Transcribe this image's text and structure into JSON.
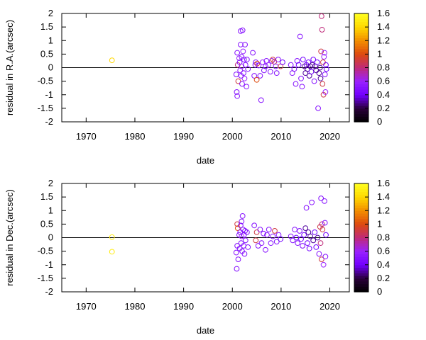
{
  "chart_data": [
    {
      "type": "scatter",
      "title": "",
      "xlabel": "date",
      "ylabel": "residual in R.A.(arcsec)",
      "xlim": [
        1965,
        2024
      ],
      "ylim": [
        -2,
        2
      ],
      "xticks": [
        "1970",
        "1980",
        "1990",
        "2000",
        "2010",
        "2020"
      ],
      "yticks": [
        "-2",
        "-1.5",
        "-1",
        "-0.5",
        "0",
        "0.5",
        "1",
        "1.5",
        "2"
      ],
      "zero_line": true,
      "colorbar": {
        "range": [
          0,
          1.6
        ],
        "ticks": [
          "0",
          "0.2",
          "0.4",
          "0.6",
          "0.8",
          "1",
          "1.2",
          "1.4",
          "1.6"
        ],
        "stops": [
          "#000000",
          "#2a003a",
          "#7200ff",
          "#9a22ff",
          "#bf2a7a",
          "#dd4a0e",
          "#f28e00",
          "#ffd800",
          "#ffff20"
        ]
      },
      "series": [
        {
          "x": [
            1975.3,
            2000.8,
            2000.9,
            2001.0,
            2001.0,
            2001.1,
            2001.2,
            2001.4,
            2001.5,
            2001.6,
            2001.7,
            2001.7,
            2001.8,
            2001.9,
            2001.9,
            2002.0,
            2002.1,
            2002.2,
            2002.3,
            2002.4,
            2002.5,
            2002.6,
            2002.7,
            2002.9,
            2003.0,
            2003.2,
            2004.2,
            2004.5,
            2004.7,
            2004.8,
            2005.0,
            2005.1,
            2005.4,
            2005.7,
            2005.9,
            2006.2,
            2006.5,
            2006.8,
            2007.0,
            2007.4,
            2007.8,
            2008.1,
            2008.3,
            2008.6,
            2008.9,
            2009.1,
            2009.4,
            2009.9,
            2010.3,
            2012.0,
            2012.3,
            2012.7,
            2013.0,
            2013.3,
            2013.6,
            2013.9,
            2014.1,
            2014.3,
            2014.5,
            2014.8,
            2015.0,
            2015.2,
            2015.4,
            2015.6,
            2015.8,
            2016.0,
            2016.2,
            2016.4,
            2016.6,
            2016.8,
            2017.0,
            2017.2,
            2017.4,
            2017.6,
            2017.8,
            2018.0,
            2018.1,
            2018.2,
            2018.3,
            2018.4,
            2018.5,
            2018.6,
            2018.7,
            2018.8,
            2018.9,
            2019.0,
            2019.1,
            2019.2,
            2019.3
          ],
          "y": [
            0.27,
            -0.25,
            -0.9,
            -1.05,
            0.55,
            0.1,
            -0.5,
            0.35,
            0.2,
            -0.1,
            0.85,
            1.35,
            -0.3,
            0.05,
            0.4,
            -0.6,
            1.38,
            0.6,
            -0.2,
            0.3,
            -0.4,
            0.85,
            0.1,
            -0.7,
            0.3,
            -0.05,
            0.55,
            -0.3,
            0.1,
            0.2,
            -0.45,
            0.15,
            0.08,
            -0.3,
            -1.2,
            0.2,
            -0.1,
            0.05,
            0.25,
            0.1,
            -0.15,
            0.25,
            0.3,
            0.22,
            0.05,
            -0.2,
            0.3,
            0.05,
            0.2,
            0.1,
            -0.2,
            -0.05,
            -0.6,
            0.25,
            0.1,
            1.15,
            -0.4,
            -0.7,
            0.3,
            0.05,
            -0.2,
            0.1,
            -0.05,
            0.2,
            -0.3,
            0.05,
            -0.15,
            0.1,
            0.3,
            -0.5,
            0.05,
            -0.1,
            0.2,
            -1.5,
            -0.2,
            0.0,
            -0.4,
            0.6,
            1.9,
            1.4,
            -0.6,
            0.2,
            -1.0,
            0.4,
            0.55,
            -0.25,
            -0.9,
            0.1,
            -0.05
          ],
          "c": [
            1.4,
            0.5,
            0.5,
            0.5,
            0.5,
            0.8,
            0.9,
            0.6,
            0.5,
            0.6,
            0.5,
            0.5,
            0.5,
            0.6,
            0.5,
            0.5,
            0.5,
            0.6,
            0.5,
            0.5,
            0.6,
            0.5,
            0.5,
            0.5,
            0.5,
            0.5,
            0.5,
            0.5,
            0.5,
            0.5,
            1.0,
            1.0,
            0.5,
            0.5,
            0.5,
            0.6,
            0.5,
            0.4,
            0.5,
            0.6,
            0.5,
            0.6,
            0.9,
            0.9,
            0.5,
            0.5,
            0.5,
            0.9,
            0.4,
            0.5,
            0.5,
            0.5,
            0.5,
            0.5,
            0.4,
            0.5,
            0.5,
            0.5,
            0.4,
            0.3,
            0.3,
            0.4,
            0.3,
            0.4,
            0.3,
            0.3,
            0.4,
            0.3,
            0.4,
            0.5,
            0.3,
            0.3,
            0.4,
            0.5,
            0.3,
            0.3,
            0.3,
            0.9,
            0.8,
            0.8,
            0.9,
            0.9,
            0.9,
            0.6,
            0.6,
            0.5,
            0.6,
            0.4,
            0.4
          ]
        }
      ]
    },
    {
      "type": "scatter",
      "title": "",
      "xlabel": "date",
      "ylabel": "residual in Dec.(arcsec)",
      "xlim": [
        1965,
        2024
      ],
      "ylim": [
        -2,
        2
      ],
      "xticks": [
        "1970",
        "1980",
        "1990",
        "2000",
        "2010",
        "2020"
      ],
      "yticks": [
        "-2",
        "-1.5",
        "-1",
        "-0.5",
        "0",
        "0.5",
        "1",
        "1.5",
        "2"
      ],
      "zero_line": true,
      "colorbar": {
        "range": [
          0,
          1.6
        ],
        "ticks": [
          "0",
          "0.2",
          "0.4",
          "0.6",
          "0.8",
          "1",
          "1.2",
          "1.4",
          "1.6"
        ],
        "stops": [
          "#000000",
          "#2a003a",
          "#7200ff",
          "#9a22ff",
          "#bf2a7a",
          "#dd4a0e",
          "#f28e00",
          "#ffd800",
          "#ffff20"
        ]
      },
      "series": [
        {
          "x": [
            1975.3,
            1975.3,
            2000.8,
            2000.9,
            2001.0,
            2001.0,
            2001.1,
            2001.2,
            2001.4,
            2001.5,
            2001.6,
            2001.7,
            2001.8,
            2001.9,
            2001.9,
            2002.0,
            2002.1,
            2002.2,
            2002.3,
            2002.4,
            2002.5,
            2002.6,
            2002.7,
            2003.0,
            2003.2,
            2004.5,
            2004.8,
            2005.0,
            2005.3,
            2005.7,
            2006.0,
            2006.4,
            2006.8,
            2007.1,
            2007.5,
            2007.9,
            2008.3,
            2008.7,
            2009.1,
            2009.5,
            2009.9,
            2012.0,
            2012.4,
            2012.8,
            2013.1,
            2013.4,
            2013.8,
            2014.1,
            2014.4,
            2014.7,
            2015.0,
            2015.2,
            2015.4,
            2015.6,
            2015.8,
            2016.0,
            2016.3,
            2016.6,
            2016.9,
            2017.2,
            2017.5,
            2017.8,
            2018.0,
            2018.1,
            2018.2,
            2018.3,
            2018.4,
            2018.5,
            2018.7,
            2018.9,
            2019.0,
            2019.1,
            2019.2
          ],
          "y": [
            0.02,
            -0.52,
            -0.55,
            -1.15,
            -0.3,
            0.5,
            0.35,
            -0.8,
            0.1,
            -0.4,
            0.2,
            0.45,
            -0.2,
            0.05,
            0.6,
            -0.5,
            0.8,
            0.3,
            -0.3,
            0.1,
            -0.6,
            0.25,
            -0.1,
            0.2,
            -0.35,
            0.45,
            -0.1,
            0.2,
            -0.3,
            0.3,
            -0.2,
            0.15,
            -0.45,
            0.1,
            0.3,
            -0.2,
            0.05,
            0.25,
            -0.15,
            0.1,
            -0.05,
            0.05,
            -0.1,
            0.3,
            0.0,
            -0.2,
            0.25,
            -0.05,
            -0.3,
            0.1,
            0.35,
            1.1,
            -0.2,
            0.2,
            -0.4,
            0.05,
            1.3,
            -0.1,
            0.2,
            -0.35,
            0.0,
            -0.6,
            0.4,
            -0.2,
            1.45,
            -0.8,
            0.5,
            0.3,
            -1.0,
            1.35,
            0.55,
            -0.7,
            0.1
          ],
          "c": [
            1.5,
            1.5,
            0.5,
            0.5,
            0.5,
            0.9,
            1.0,
            0.5,
            0.5,
            0.5,
            0.5,
            0.5,
            0.5,
            0.6,
            0.5,
            0.5,
            0.5,
            0.5,
            0.5,
            0.5,
            0.5,
            0.5,
            0.5,
            0.5,
            0.5,
            0.5,
            0.9,
            0.9,
            0.5,
            0.5,
            0.5,
            0.5,
            0.5,
            0.5,
            0.5,
            0.5,
            0.5,
            0.9,
            0.5,
            0.5,
            0.4,
            0.5,
            0.5,
            0.5,
            0.4,
            0.5,
            0.5,
            0.4,
            0.5,
            0.4,
            0.3,
            0.5,
            0.4,
            0.3,
            0.4,
            0.3,
            0.5,
            0.3,
            0.4,
            0.4,
            0.3,
            0.5,
            0.9,
            0.8,
            0.5,
            0.9,
            0.8,
            0.9,
            0.6,
            0.5,
            0.5,
            0.5,
            0.4
          ]
        }
      ]
    }
  ]
}
